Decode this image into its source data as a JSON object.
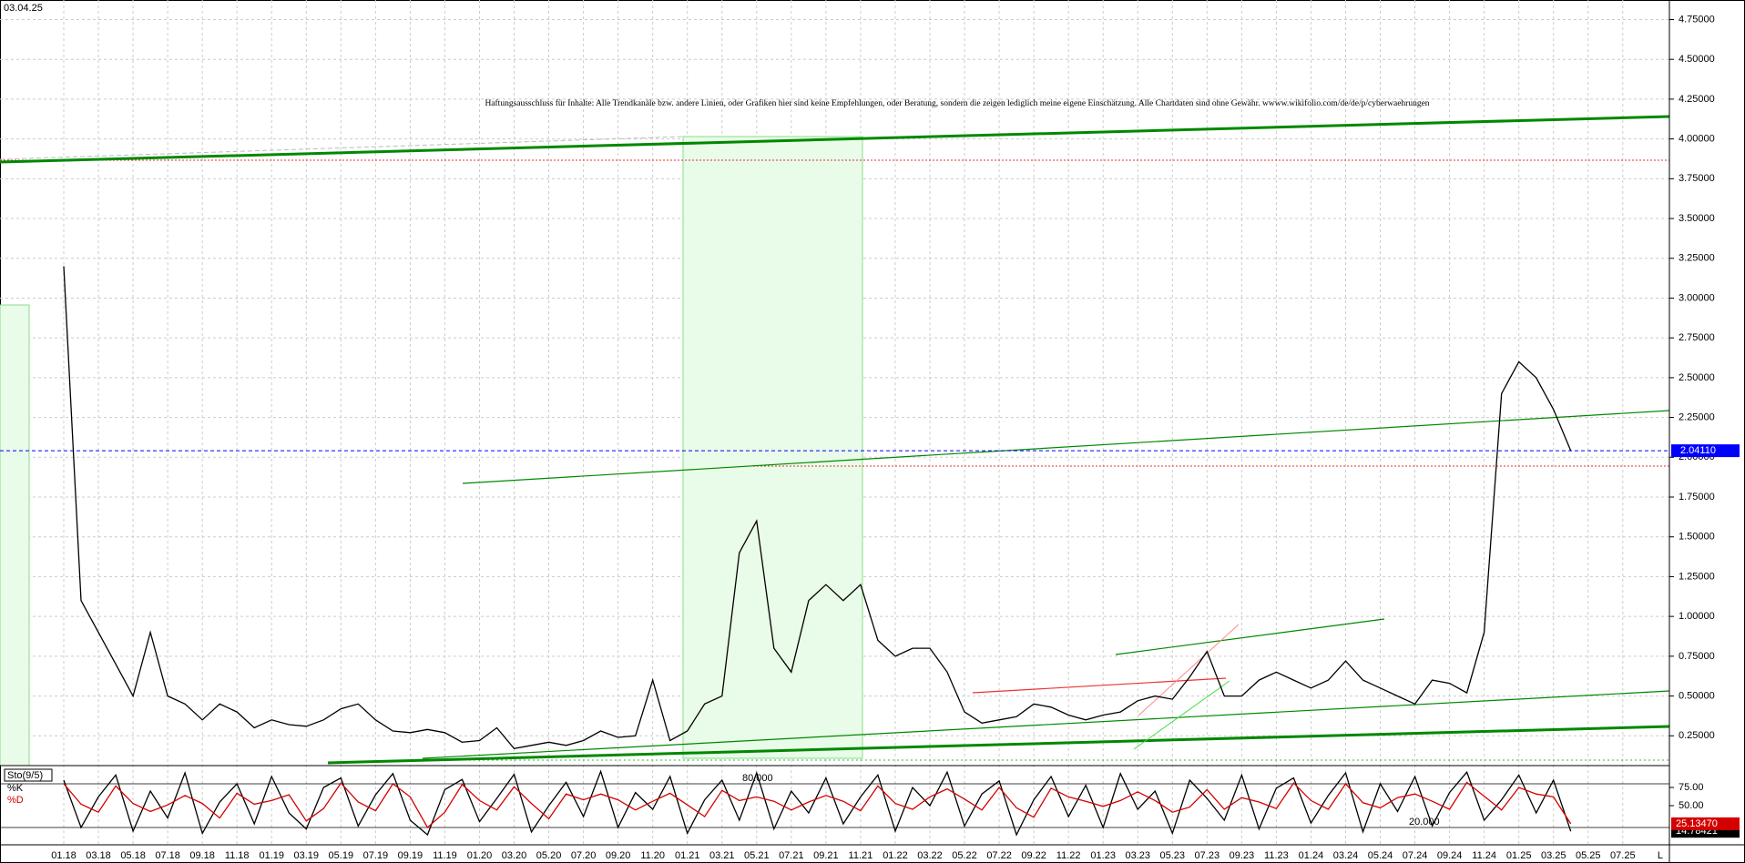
{
  "chart_data": [
    {
      "type": "line",
      "date": "03.04.25",
      "annotation": "Haftungsausschluss für Inhalte: Alle Trendkanäle bzw. andere Linien, oder Grafiken hier sind keine Empfehlungen, oder Beratung, sondern die zeigen lediglich meine eigene Einschätzung. Alle Chartdaten sind ohne Gewähr.  wwww.wikifolio.com/de/de/p/cyberwaehrungen",
      "categories": [
        "01.18",
        null,
        "03.18",
        null,
        "05.18",
        null,
        "07.18",
        null,
        "09.18",
        null,
        "11.18",
        null,
        "01.19",
        null,
        "03.19",
        null,
        "05.19",
        null,
        "07.19",
        null,
        "09.19",
        null,
        "11.19",
        null,
        "01.20",
        null,
        "03.20",
        null,
        "05.20",
        null,
        "07.20",
        null,
        "09.20",
        null,
        "11.20",
        null,
        "01.21",
        null,
        "03.21",
        null,
        "05.21",
        null,
        "07.21",
        null,
        "09.21",
        null,
        "11.21",
        null,
        "01.22",
        null,
        "03.22",
        null,
        "05.22",
        null,
        "07.22",
        null,
        "09.22",
        null,
        "11.22",
        null,
        "01.23",
        null,
        "03.23",
        null,
        "05.23",
        null,
        "07.23",
        null,
        "09.23",
        null,
        "11.23",
        null,
        "01.24",
        null,
        "03.24",
        null,
        "05.24",
        null,
        "07.24",
        null,
        "09.24",
        null,
        "11.24",
        null,
        "01.25",
        null,
        "03.25",
        null,
        "05.25",
        null,
        "07.25"
      ],
      "series": [
        {
          "color": "#000000",
          "values": [
            3.2,
            1.1,
            0.9,
            0.7,
            0.5,
            0.9,
            0.5,
            0.45,
            0.35,
            0.45,
            0.4,
            0.3,
            0.35,
            0.32,
            0.31,
            0.35,
            0.42,
            0.45,
            0.35,
            0.28,
            0.27,
            0.29,
            0.27,
            0.21,
            0.22,
            0.3,
            0.17,
            0.19,
            0.21,
            0.19,
            0.22,
            0.28,
            0.24,
            0.25,
            0.6,
            0.22,
            0.28,
            0.45,
            0.5,
            1.4,
            1.6,
            0.8,
            0.65,
            1.1,
            1.2,
            1.1,
            1.2,
            0.85,
            0.75,
            0.8,
            0.8,
            0.65,
            0.4,
            0.33,
            0.35,
            0.37,
            0.45,
            0.43,
            0.38,
            0.35,
            0.38,
            0.4,
            0.47,
            0.5,
            0.48,
            0.62,
            0.78,
            0.5,
            0.5,
            0.6,
            0.65,
            0.6,
            0.55,
            0.6,
            0.72,
            0.6,
            0.55,
            0.5,
            0.45,
            0.6,
            0.58,
            0.52,
            0.9,
            2.4,
            2.6,
            2.5,
            2.3,
            2.0411,
            null,
            null,
            null
          ]
        }
      ],
      "ylim": [
        0.08,
        4.85
      ],
      "yticks": [
        {
          "value": 0.25,
          "label": "0.25000"
        },
        {
          "value": 0.5,
          "label": "0.50000"
        },
        {
          "value": 0.75,
          "label": "0.75000"
        },
        {
          "value": 1,
          "label": "1.00000"
        },
        {
          "value": 1.25,
          "label": "1.25000"
        },
        {
          "value": 1.5,
          "label": "1.50000"
        },
        {
          "value": 1.75,
          "label": "1.75000"
        },
        {
          "value": 2,
          "label": "2.00000"
        },
        {
          "value": 2.25,
          "label": "2.25000"
        },
        {
          "value": 2.5,
          "label": "2.50000"
        },
        {
          "value": 2.75,
          "label": "2.75000"
        },
        {
          "value": 3,
          "label": "3.00000"
        },
        {
          "value": 3.25,
          "label": "3.25000"
        },
        {
          "value": 3.5,
          "label": "3.50000"
        },
        {
          "value": 3.75,
          "label": "3.75000"
        },
        {
          "value": 4,
          "label": "4.00000"
        },
        {
          "value": 4.25,
          "label": "4.25000"
        },
        {
          "value": 4.5,
          "label": "4.50000"
        },
        {
          "value": 4.75,
          "label": "4.75000"
        }
      ],
      "last_price": {
        "value": 2.0411,
        "label": "2.04110"
      },
      "grid": true,
      "corner_label": "L"
    },
    {
      "type": "line",
      "title": "Sto(9/5)",
      "series": [
        {
          "name": "%K",
          "color": "#000000",
          "values": [
            85,
            20,
            62,
            92,
            15,
            70,
            33,
            95,
            12,
            55,
            80,
            25,
            90,
            40,
            18,
            75,
            88,
            22,
            65,
            94,
            30,
            10,
            72,
            86,
            28,
            60,
            93,
            14,
            50,
            82,
            35,
            97,
            20,
            68,
            45,
            90,
            12,
            58,
            85,
            30,
            95,
            18,
            70,
            40,
            88,
            25,
            62,
            92,
            15,
            75,
            50,
            96,
            22,
            66,
            84,
            10,
            58,
            90,
            35,
            78,
            20,
            94,
            45,
            70,
            12,
            85,
            60,
            30,
            92,
            18,
            74,
            88,
            26,
            64,
            95,
            14,
            80,
            42,
            90,
            22,
            68,
            96,
            30,
            58,
            92,
            40,
            85,
            14.78421,
            null,
            null,
            null
          ],
          "value_labels": {
            "87": "14.78421"
          }
        },
        {
          "name": "%D",
          "color": "#d40000",
          "values": [
            80,
            52,
            41,
            77,
            53,
            42,
            51,
            64,
            53,
            33,
            67,
            52,
            57,
            65,
            29,
            46,
            81,
            55,
            43,
            80,
            62,
            20,
            41,
            79,
            57,
            44,
            76,
            53,
            32,
            66,
            58,
            66,
            58,
            44,
            56,
            67,
            51,
            35,
            71,
            57,
            62,
            56,
            44,
            55,
            64,
            56,
            43,
            77,
            53,
            45,
            62,
            73,
            59,
            44,
            75,
            47,
            34,
            74,
            62,
            56,
            49,
            57,
            69,
            57,
            41,
            48,
            72,
            45,
            61,
            55,
            46,
            81,
            57,
            45,
            80,
            54,
            47,
            61,
            66,
            56,
            45,
            82,
            63,
            44,
            75,
            66,
            62,
            25.1347,
            null,
            null,
            null
          ],
          "value_labels": {
            "87": "25.13470"
          }
        }
      ],
      "ylim": [
        0,
        100
      ],
      "yticks": [
        {
          "value": 75,
          "label": "75.00"
        },
        {
          "value": 50,
          "label": "50.00"
        }
      ],
      "levels": [
        {
          "value": 80,
          "label": "80.000"
        },
        {
          "value": 20,
          "label": "20.000"
        }
      ]
    }
  ]
}
